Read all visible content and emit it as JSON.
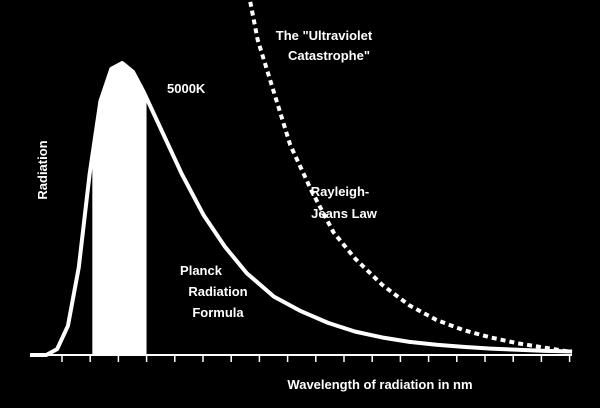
{
  "chart_data": {
    "type": "line",
    "title": "",
    "xlabel": "Wavelength of radiation in nm",
    "ylabel": "Radiation",
    "grid": false,
    "x_ticks_count": 19,
    "series": [
      {
        "name": "Planck Radiation Formula",
        "style": "solid",
        "color": "#ffffff",
        "points": [
          [
            0.0,
            0.0
          ],
          [
            0.03,
            0.0
          ],
          [
            0.05,
            0.02
          ],
          [
            0.07,
            0.1
          ],
          [
            0.09,
            0.3
          ],
          [
            0.11,
            0.62
          ],
          [
            0.13,
            0.87
          ],
          [
            0.15,
            0.98
          ],
          [
            0.17,
            1.0
          ],
          [
            0.19,
            0.97
          ],
          [
            0.21,
            0.9
          ],
          [
            0.24,
            0.78
          ],
          [
            0.28,
            0.62
          ],
          [
            0.32,
            0.48
          ],
          [
            0.36,
            0.37
          ],
          [
            0.4,
            0.28
          ],
          [
            0.45,
            0.2
          ],
          [
            0.5,
            0.15
          ],
          [
            0.55,
            0.11
          ],
          [
            0.6,
            0.08
          ],
          [
            0.65,
            0.06
          ],
          [
            0.7,
            0.045
          ],
          [
            0.75,
            0.035
          ],
          [
            0.8,
            0.028
          ],
          [
            0.85,
            0.022
          ],
          [
            0.9,
            0.018
          ],
          [
            0.95,
            0.014
          ],
          [
            1.0,
            0.012
          ]
        ]
      },
      {
        "name": "Rayleigh-Jeans Law",
        "style": "dashed",
        "color": "#ffffff",
        "points": [
          [
            0.4,
            1.27
          ],
          [
            0.42,
            1.08
          ],
          [
            0.45,
            0.9
          ],
          [
            0.48,
            0.72
          ],
          [
            0.52,
            0.56
          ],
          [
            0.56,
            0.42
          ],
          [
            0.6,
            0.33
          ],
          [
            0.65,
            0.24
          ],
          [
            0.7,
            0.17
          ],
          [
            0.75,
            0.12
          ],
          [
            0.8,
            0.085
          ],
          [
            0.85,
            0.06
          ],
          [
            0.9,
            0.04
          ],
          [
            0.95,
            0.025
          ],
          [
            1.0,
            0.01
          ]
        ]
      }
    ],
    "visible_band": {
      "x_start": 0.115,
      "x_end": 0.215,
      "color": "#ffffff"
    },
    "annotations": {
      "temperature": "5000K",
      "catastrophe_line1": "The \"Ultraviolet",
      "catastrophe_line2": "Catastrophe\"",
      "rj_line1": "Rayleigh-",
      "rj_line2": "Jeans Law",
      "planck_line1": "Planck",
      "planck_line2": "Radiation",
      "planck_line3": "Formula"
    }
  }
}
